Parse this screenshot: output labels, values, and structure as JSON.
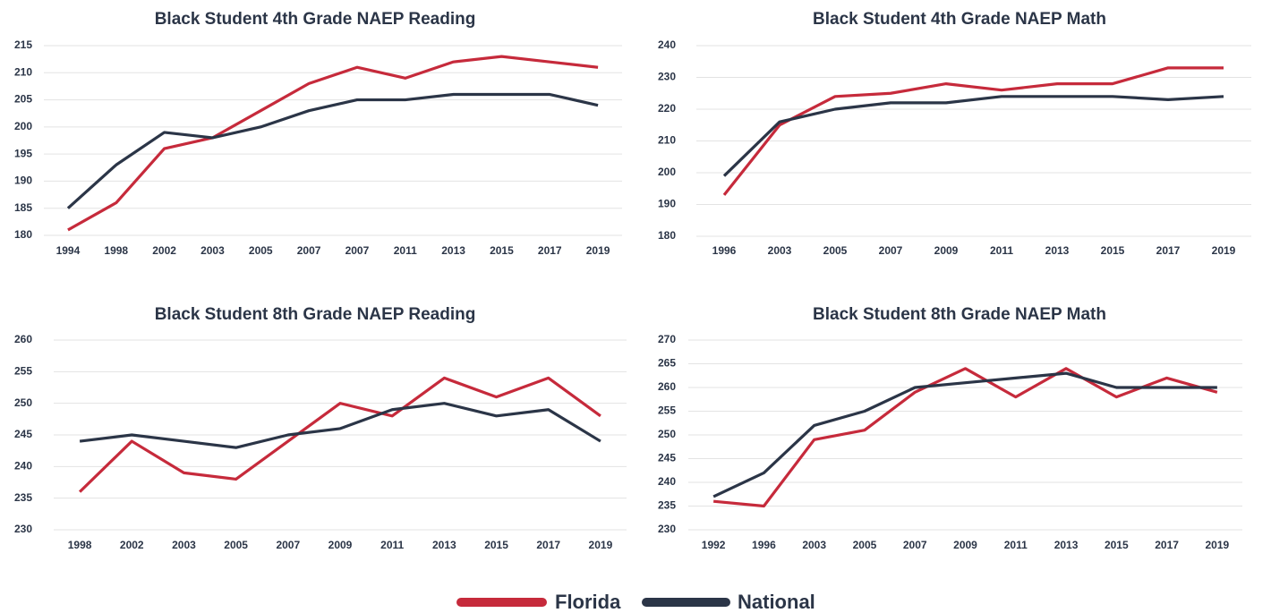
{
  "legend": [
    {
      "name": "Florida",
      "color": "#c62a3b"
    },
    {
      "name": "National",
      "color": "#2b3547"
    }
  ],
  "chart_data": [
    {
      "type": "line",
      "title": "Black Student 4th Grade NAEP Reading",
      "categories": [
        "1994",
        "1998",
        "2002",
        "2003",
        "2005",
        "2007",
        "2007",
        "2011",
        "2013",
        "2015",
        "2017",
        "2019"
      ],
      "series": [
        {
          "values": [
            181,
            186,
            196,
            198,
            203,
            208,
            211,
            209,
            212,
            213,
            212,
            211
          ]
        },
        {
          "values": [
            185,
            193,
            199,
            198,
            200,
            203,
            205,
            205,
            206,
            206,
            206,
            204
          ]
        }
      ],
      "ylim": [
        180,
        215
      ],
      "yticks": [
        180,
        185,
        190,
        195,
        200,
        205,
        210,
        215
      ],
      "grid": true
    },
    {
      "type": "line",
      "title": "Black Student 4th Grade NAEP Math",
      "categories": [
        "1996",
        "2003",
        "2005",
        "2007",
        "2009",
        "2011",
        "2013",
        "2015",
        "2017",
        "2019"
      ],
      "series": [
        {
          "values": [
            193,
            215,
            224,
            225,
            228,
            226,
            228,
            228,
            233,
            233
          ]
        },
        {
          "values": [
            199,
            216,
            220,
            222,
            222,
            224,
            224,
            224,
            223,
            224
          ]
        }
      ],
      "ylim": [
        180,
        240
      ],
      "yticks": [
        180,
        190,
        200,
        210,
        220,
        230,
        240
      ],
      "grid": true
    },
    {
      "type": "line",
      "title": "Black Student 8th Grade NAEP Reading",
      "categories": [
        "1998",
        "2002",
        "2003",
        "2005",
        "2007",
        "2009",
        "2011",
        "2013",
        "2015",
        "2017",
        "2019"
      ],
      "series": [
        {
          "values": [
            236,
            244,
            239,
            238,
            244,
            250,
            248,
            254,
            251,
            254,
            248
          ]
        },
        {
          "values": [
            244,
            245,
            244,
            243,
            245,
            246,
            249,
            250,
            248,
            249,
            244
          ]
        }
      ],
      "ylim": [
        230,
        260
      ],
      "yticks": [
        230,
        235,
        240,
        245,
        250,
        255,
        260
      ],
      "grid": true
    },
    {
      "type": "line",
      "title": "Black Student 8th Grade NAEP Math",
      "categories": [
        "1992",
        "1996",
        "2003",
        "2005",
        "2007",
        "2009",
        "2011",
        "2013",
        "2015",
        "2017",
        "2019"
      ],
      "series": [
        {
          "values": [
            236,
            235,
            249,
            251,
            259,
            264,
            258,
            264,
            258,
            262,
            259
          ]
        },
        {
          "values": [
            237,
            242,
            252,
            255,
            260,
            261,
            262,
            263,
            260,
            260,
            260
          ]
        }
      ],
      "ylim": [
        230,
        270
      ],
      "yticks": [
        230,
        235,
        240,
        245,
        250,
        255,
        260,
        265,
        270
      ],
      "grid": true
    }
  ]
}
